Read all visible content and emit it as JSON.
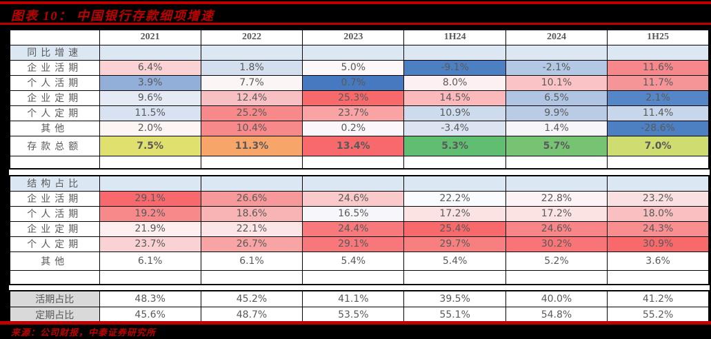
{
  "title": "图表 10： 中国银行存款细项增速",
  "source": "来源：公司财报，中泰证券研究所",
  "colors": {
    "accent_red": "#C00000",
    "rule_red": "#C00000",
    "section_fill": "#DBE8F4",
    "label_gray_fill": "#D9D9D9",
    "value_text": "#595959",
    "border": "#000000",
    "scale_red_max": "#F8696B",
    "scale_blue_max": "#5A8AC6",
    "scale_green": "#63BE7B"
  },
  "table": {
    "columns": [
      "",
      "2021",
      "2022",
      "2023",
      "1H24",
      "2024",
      "1H25"
    ],
    "sections": [
      {
        "rows": [
          {
            "type": "section",
            "label": "同比增速",
            "spaced": true
          },
          {
            "type": "data",
            "label": "企业活期",
            "spaced": true,
            "values": [
              "6.4%",
              "1.8%",
              "5.0%",
              "-9.1%",
              "-2.1%",
              "11.6%"
            ],
            "fills": [
              "#FAD2D4",
              "#D3DEEE",
              "#FCF7F8",
              "#4D80C3",
              "#B3C8E4",
              "#F6888C"
            ]
          },
          {
            "type": "data",
            "label": "个人活期",
            "spaced": true,
            "values": [
              "3.9%",
              "7.7%",
              "0.7%",
              "8.0%",
              "10.1%",
              "11.7%"
            ],
            "fills": [
              "#92AFDA",
              "#FBF5F6",
              "#4679BF",
              "#FDF0F2",
              "#FAC4C6",
              "#F59598"
            ]
          },
          {
            "type": "data",
            "label": "企业定期",
            "spaced": true,
            "values": [
              "9.6%",
              "12.4%",
              "25.3%",
              "14.5%",
              "6.5%",
              "2.1%"
            ],
            "fills": [
              "#E4EBF5",
              "#F8C0C2",
              "#F8696B",
              "#FBB9BC",
              "#AFC5E3",
              "#5586C8"
            ]
          },
          {
            "type": "data",
            "label": "个人定期",
            "spaced": true,
            "values": [
              "11.5%",
              "25.2%",
              "23.7%",
              "10.9%",
              "9.9%",
              "11.4%"
            ],
            "fills": [
              "#D8E2F0",
              "#F8898B",
              "#F9A3A4",
              "#CEDBEC",
              "#B9CBE5",
              "#C7D6EA"
            ]
          },
          {
            "type": "data",
            "label": "其他",
            "spaced": true,
            "values": [
              "2.0%",
              "10.4%",
              "0.2%",
              "-3.4%",
              "1.4%",
              "-28.6%"
            ],
            "fills": [
              "#FDF4F4",
              "#F7898A",
              "#FBF6F9",
              "#DCE4F2",
              "#F7F5FA",
              "#4C80C3"
            ]
          },
          {
            "type": "data",
            "label": "存款总额",
            "spaced": true,
            "bold": true,
            "values": [
              "7.5%",
              "11.3%",
              "13.4%",
              "5.3%",
              "5.7%",
              "7.0%"
            ],
            "fills": [
              "#E0E06F",
              "#F8A569",
              "#F8696B",
              "#5FBE70",
              "#76C373",
              "#CFDC6F"
            ]
          },
          {
            "type": "empty",
            "label": "",
            "values": [
              "",
              "",
              "",
              "",
              "",
              ""
            ],
            "fills": [
              "#FFFFFF",
              "#FFFFFF",
              "#FFFFFF",
              "#FFFFFF",
              "#FFFFFF",
              "#FFFFFF"
            ]
          }
        ]
      },
      {
        "rows": [
          {
            "type": "section",
            "label": "结构占比",
            "spaced": true
          },
          {
            "type": "data",
            "label": "企业活期",
            "spaced": true,
            "values": [
              "29.1%",
              "26.6%",
              "24.6%",
              "22.2%",
              "22.8%",
              "23.2%"
            ],
            "fills": [
              "#F7696C",
              "#F7999A",
              "#FAC9CA",
              "#FAFBFE",
              "#FDF3F4",
              "#FBE0E1"
            ]
          },
          {
            "type": "data",
            "label": "个人活期",
            "spaced": true,
            "values": [
              "19.2%",
              "18.6%",
              "16.5%",
              "17.2%",
              "17.2%",
              "18.0%"
            ],
            "fills": [
              "#F7898B",
              "#F8B3B4",
              "#F7F7FB",
              "#FBE2E3",
              "#FBE2E3",
              "#F9BFC1"
            ]
          },
          {
            "type": "data",
            "label": "企业定期",
            "spaced": true,
            "values": [
              "21.9%",
              "22.1%",
              "24.4%",
              "25.4%",
              "24.6%",
              "24.3%"
            ],
            "fills": [
              "#FDEEEF",
              "#FCE5E6",
              "#F7797B",
              "#F8696B",
              "#F88587",
              "#F88E90"
            ]
          },
          {
            "type": "data",
            "label": "个人定期",
            "spaced": true,
            "values": [
              "23.7%",
              "26.7%",
              "29.1%",
              "29.7%",
              "30.2%",
              "30.9%"
            ],
            "fills": [
              "#FAD2D3",
              "#F8A3A4",
              "#F7777A",
              "#F87F80",
              "#F87476",
              "#F8696B"
            ]
          },
          {
            "type": "data",
            "label": "其他",
            "spaced": true,
            "values": [
              "6.1%",
              "6.1%",
              "5.4%",
              "5.4%",
              "5.2%",
              "3.6%"
            ],
            "fills": [
              "#FFFFFF",
              "#FFFFFF",
              "#FFFFFF",
              "#FFFFFF",
              "#FFFFFF",
              "#FFFFFF"
            ]
          },
          {
            "type": "empty",
            "label": "",
            "values": [
              "",
              "",
              "",
              "",
              "",
              ""
            ],
            "fills": [
              "#FFFFFF",
              "#FFFFFF",
              "#FFFFFF",
              "#FFFFFF",
              "#FFFFFF",
              "#FFFFFF"
            ]
          }
        ]
      },
      {
        "rows": [
          {
            "type": "data",
            "label": "活期占比",
            "label_fill": "#D9D9D9",
            "align": "right",
            "values": [
              "48.3%",
              "45.2%",
              "41.1%",
              "39.5%",
              "40.0%",
              "41.2%"
            ],
            "fills": [
              "#FFFFFF",
              "#FFFFFF",
              "#FFFFFF",
              "#FFFFFF",
              "#FFFFFF",
              "#FFFFFF"
            ]
          },
          {
            "type": "data",
            "label": "定期占比",
            "label_fill": "#D9D9D9",
            "align": "right",
            "values": [
              "45.6%",
              "48.7%",
              "53.5%",
              "55.1%",
              "54.8%",
              "55.2%"
            ],
            "fills": [
              "#FFFFFF",
              "#FFFFFF",
              "#FFFFFF",
              "#FFFFFF",
              "#FFFFFF",
              "#FFFFFF"
            ]
          }
        ]
      }
    ]
  }
}
